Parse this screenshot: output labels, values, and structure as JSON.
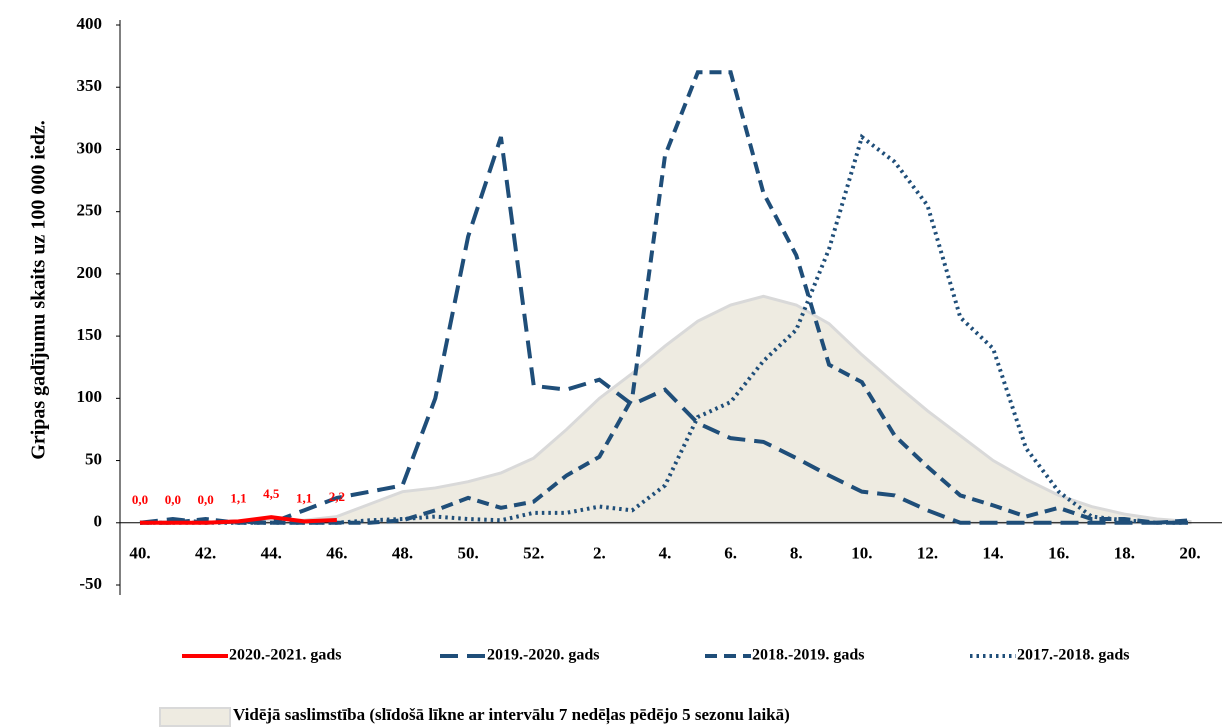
{
  "chart_data": {
    "type": "line",
    "ylabel": "Gripas gadījumu skaits uz 100 000 iedz.",
    "categories": [
      "40.",
      null,
      "42.",
      null,
      "44.",
      null,
      "46.",
      null,
      "48.",
      null,
      "50.",
      null,
      "52.",
      null,
      "2.",
      null,
      "4.",
      null,
      "6.",
      null,
      "8.",
      null,
      "10.",
      null,
      "12.",
      null,
      "14.",
      null,
      "16.",
      null,
      "18.",
      null,
      "20."
    ],
    "ylim": [
      -50,
      400
    ],
    "yticks": [
      -50,
      0,
      50,
      100,
      150,
      200,
      250,
      300,
      350,
      400
    ],
    "series": [
      {
        "name": "2020.-2021. gads",
        "color": "#ff0000",
        "style": "solid",
        "values": [
          0,
          0,
          0,
          1.1,
          4.5,
          1.1,
          2.2,
          null,
          null,
          null,
          null,
          null,
          null,
          null,
          null,
          null,
          null,
          null,
          null,
          null,
          null,
          null,
          null,
          null,
          null,
          null,
          null,
          null,
          null,
          null,
          null,
          null,
          null
        ],
        "value_labels": [
          "0,0",
          "0,0",
          "0,0",
          "1,1",
          "4,5",
          "1,1",
          "2,2",
          null,
          null,
          null,
          null,
          null,
          null,
          null,
          null,
          null,
          null,
          null,
          null,
          null,
          null,
          null,
          null,
          null,
          null,
          null,
          null,
          null,
          null,
          null,
          null,
          null,
          null
        ]
      },
      {
        "name": "2019.-2020. gads",
        "color": "#1f4e79",
        "style": "longdash",
        "values": [
          0,
          3,
          0,
          1,
          0,
          10,
          20,
          25,
          30,
          100,
          230,
          310,
          110,
          107,
          115,
          95,
          107,
          80,
          68,
          65,
          52,
          38,
          25,
          22,
          10,
          0,
          0,
          0,
          0,
          0,
          0,
          0,
          0
        ]
      },
      {
        "name": "2018.-2019. gads",
        "color": "#1f4e79",
        "style": "dash",
        "values": [
          0,
          0,
          3,
          0,
          0,
          0,
          0,
          0,
          2,
          10,
          20,
          12,
          17,
          38,
          53,
          100,
          295,
          362,
          362,
          265,
          215,
          127,
          113,
          70,
          45,
          22,
          14,
          5,
          12,
          3,
          3,
          0,
          2
        ]
      },
      {
        "name": "2017.-2018. gads",
        "color": "#1f4e79",
        "style": "dot",
        "values": [
          0,
          0,
          0,
          0,
          0,
          0,
          0,
          2,
          3,
          5,
          3,
          2,
          8,
          8,
          13,
          10,
          30,
          85,
          97,
          130,
          155,
          220,
          310,
          290,
          255,
          165,
          140,
          60,
          25,
          5,
          2,
          0,
          0
        ]
      },
      {
        "name": "Vidējā saslimstība (slīdošā līkne ar intervālu 7 nedēļas pēdējo 5 sezonu laikā)",
        "color": "#eeebe1",
        "style": "area",
        "values": [
          0,
          0,
          0,
          0,
          2,
          2,
          5,
          15,
          25,
          28,
          33,
          40,
          52,
          75,
          100,
          120,
          142,
          162,
          175,
          182,
          175,
          160,
          135,
          112,
          90,
          70,
          50,
          35,
          22,
          13,
          7,
          3,
          1
        ]
      }
    ]
  }
}
